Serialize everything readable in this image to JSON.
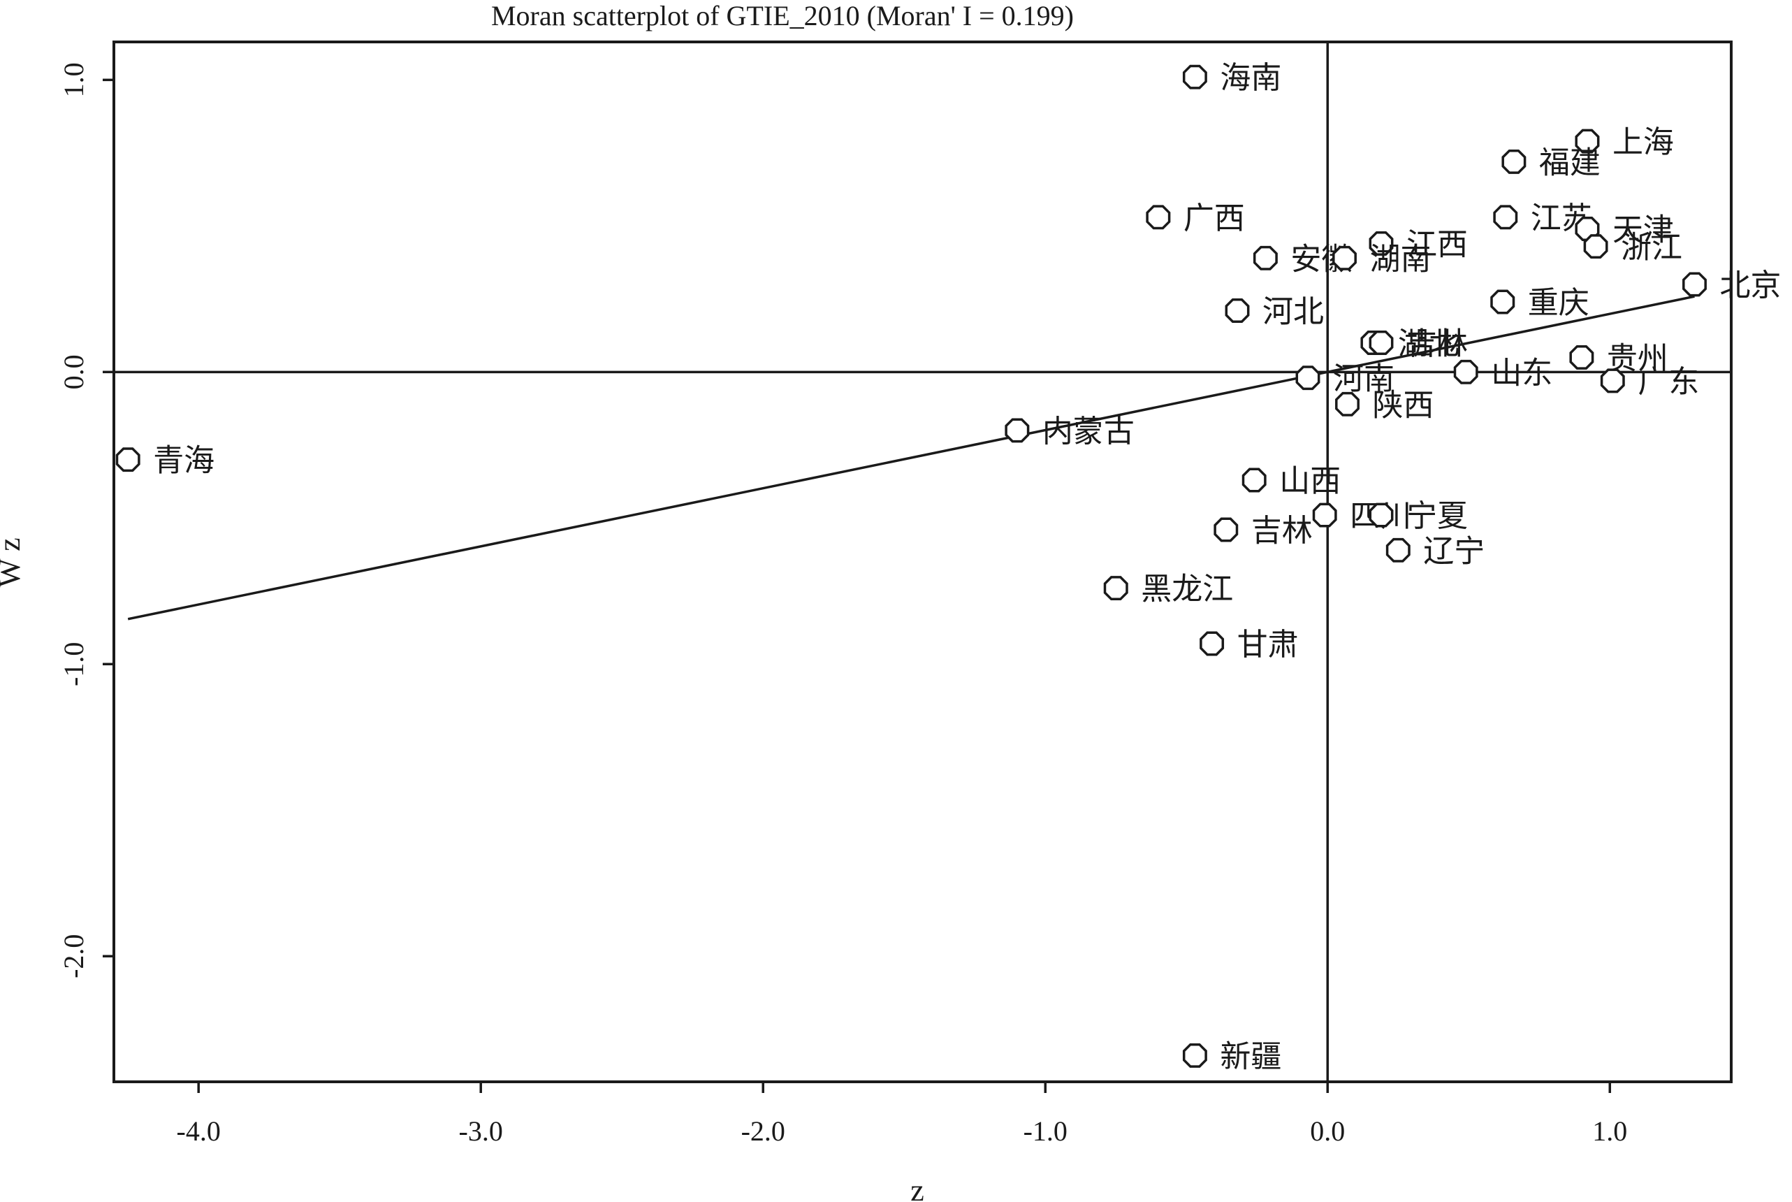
{
  "chart_data": {
    "type": "scatter",
    "title": "Moran scatterplot of GTIE_2010 (Moran' I = 0.199)",
    "xlabel": "z",
    "ylabel": "W z",
    "xlim": [
      -4.3,
      1.43
    ],
    "ylim": [
      -2.43,
      1.13
    ],
    "xticks": [
      -4.0,
      -3.0,
      -2.0,
      -1.0,
      0.0,
      1.0
    ],
    "xtick_labels": [
      "-4.0",
      "-3.0",
      "-2.0",
      "-1.0",
      "0.0",
      "1.0"
    ],
    "yticks": [
      -2.0,
      -1.0,
      0.0,
      1.0
    ],
    "ytick_labels": [
      "-2.0",
      "-1.0",
      "0.0",
      "1.0"
    ],
    "grid": false,
    "reference_lines": {
      "x": 0,
      "y": 0
    },
    "fit_line": {
      "slope": 0.199,
      "x_range": [
        -4.25,
        1.3
      ]
    },
    "points": [
      {
        "label": "海南",
        "x": -0.47,
        "y": 1.01
      },
      {
        "label": "上海",
        "x": 0.92,
        "y": 0.79
      },
      {
        "label": "福建",
        "x": 0.66,
        "y": 0.72
      },
      {
        "label": "广西",
        "x": -0.6,
        "y": 0.53
      },
      {
        "label": "江苏",
        "x": 0.63,
        "y": 0.53
      },
      {
        "label": "天津",
        "x": 0.92,
        "y": 0.49
      },
      {
        "label": "浙江",
        "x": 0.95,
        "y": 0.43
      },
      {
        "label": "江西",
        "x": 0.19,
        "y": 0.44
      },
      {
        "label": "安徽",
        "x": -0.22,
        "y": 0.39
      },
      {
        "label": "湖南",
        "x": 0.06,
        "y": 0.39
      },
      {
        "label": "北京",
        "x": 1.3,
        "y": 0.3
      },
      {
        "label": "河北",
        "x": -0.32,
        "y": 0.21
      },
      {
        "label": "重庆",
        "x": 0.62,
        "y": 0.24
      },
      {
        "label": "湖北",
        "x": 0.16,
        "y": 0.1
      },
      {
        "label": "吉林",
        "x": 0.19,
        "y": 0.1
      },
      {
        "label": "贵州",
        "x": 0.9,
        "y": 0.05
      },
      {
        "label": "山东",
        "x": 0.49,
        "y": 0.0
      },
      {
        "label": "河南",
        "x": -0.07,
        "y": -0.02
      },
      {
        "label": "广东",
        "x": 1.01,
        "y": -0.03
      },
      {
        "label": "陕西",
        "x": 0.07,
        "y": -0.11
      },
      {
        "label": "内蒙古",
        "x": -1.1,
        "y": -0.2
      },
      {
        "label": "青海",
        "x": -4.25,
        "y": -0.3
      },
      {
        "label": "山西",
        "x": -0.26,
        "y": -0.37
      },
      {
        "label": "四川",
        "x": -0.01,
        "y": -0.49
      },
      {
        "label": "宁夏",
        "x": 0.19,
        "y": -0.49
      },
      {
        "label": "辽宁",
        "x": 0.25,
        "y": -0.61
      },
      {
        "label": "吉林",
        "x": -0.36,
        "y": -0.54
      },
      {
        "label": "黑龙江",
        "x": -0.75,
        "y": -0.74
      },
      {
        "label": "甘肃",
        "x": -0.41,
        "y": -0.93
      },
      {
        "label": "新疆",
        "x": -0.47,
        "y": -2.34
      }
    ]
  }
}
